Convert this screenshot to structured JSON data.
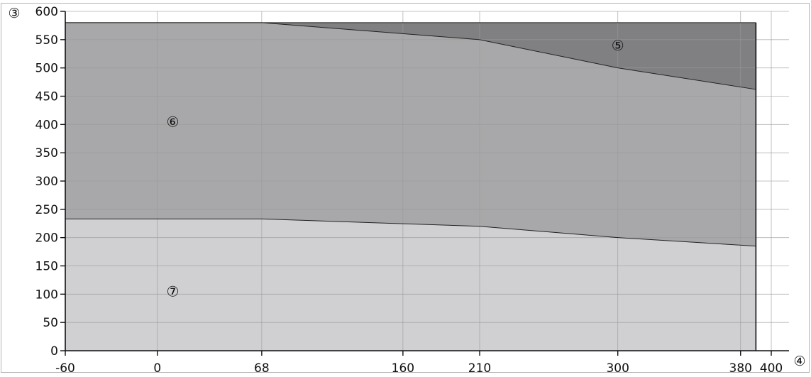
{
  "chart_data": {
    "type": "area",
    "x_ticks": [
      -60,
      0,
      68,
      160,
      210,
      300,
      380,
      400
    ],
    "y_ticks": [
      0,
      50,
      100,
      150,
      200,
      250,
      300,
      350,
      400,
      450,
      500,
      550,
      600
    ],
    "xlim": [
      -60,
      400
    ],
    "ylim": [
      0,
      600
    ],
    "x_end": 390,
    "grid": true,
    "series": [
      {
        "name": "⑦",
        "color": "#d0d0d2",
        "x": [
          -60,
          68,
          210,
          300,
          390
        ],
        "y": [
          233,
          233,
          220,
          200,
          185
        ]
      },
      {
        "name": "⑥",
        "color": "#a8a8aa",
        "x": [
          -60,
          68,
          210,
          300,
          390
        ],
        "y": [
          580,
          580,
          550,
          500,
          462
        ]
      },
      {
        "name": "⑤",
        "color": "#808082",
        "x": [
          -60,
          68,
          210,
          300,
          390
        ],
        "y": [
          580,
          580,
          580,
          580,
          580
        ]
      }
    ],
    "region_labels": [
      {
        "text": "⑤",
        "x": 300,
        "y": 540
      },
      {
        "text": "⑥",
        "x": 10,
        "y": 405
      },
      {
        "text": "⑦",
        "x": 10,
        "y": 105
      }
    ],
    "ylabel": "③",
    "xlabel": "④"
  }
}
